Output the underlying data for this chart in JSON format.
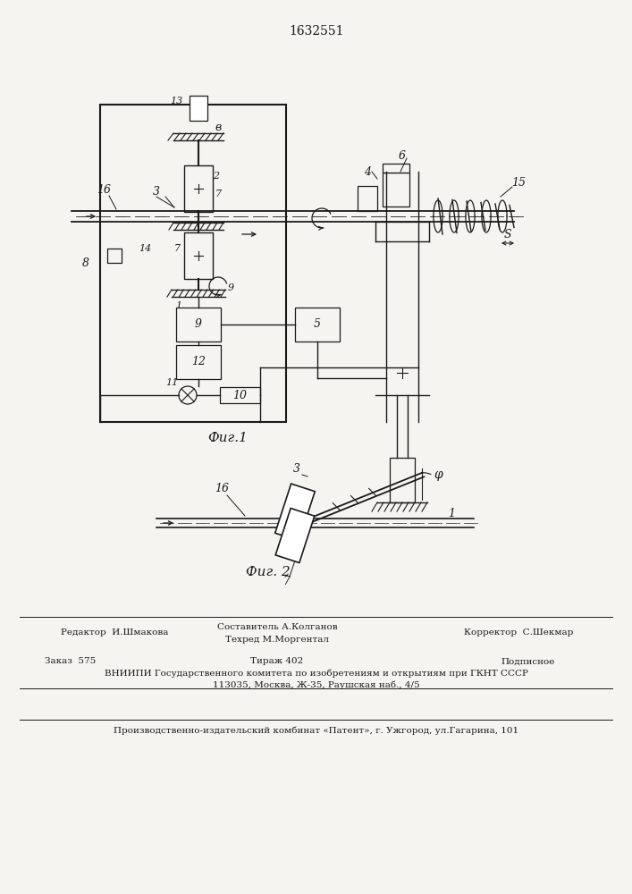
{
  "patent_number": "1632551",
  "fig1_caption": "Фиг.1",
  "fig2_caption": "Фиг. 2",
  "background_color": "#f5f4f0",
  "line_color": "#1a1a1a",
  "footer_editor": "Редактор  И.Шмакова",
  "footer_composer": "Составитель А.Колганов",
  "footer_techred": "Техред М.Моргентал",
  "footer_corrector": "Корректор  С.Шекмар",
  "footer_order": "Заказ  575",
  "footer_tirazh": "Тираж 402",
  "footer_podpis": "Подписное",
  "footer_vniipи": "ВНИИПИ Государственного комитета по изобретениям и открытиям при ГКНТ СССР",
  "footer_address": "113035, Москва, Ж-35, Раушская наб., 4/5",
  "footer_patent": "Производственно-издательский комбинат «Патент», г. Ужгород, ул.Гагарина, 101"
}
